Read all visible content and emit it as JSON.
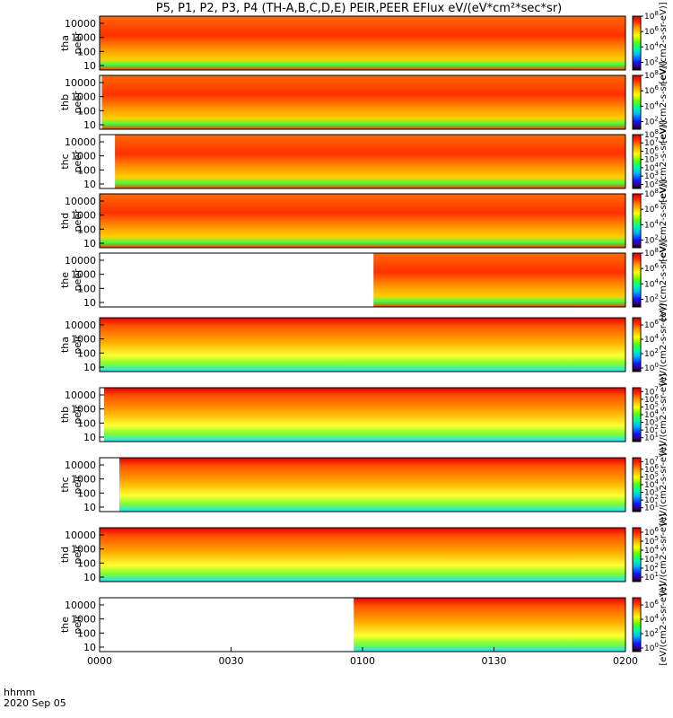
{
  "chart_data": {
    "type": "heatmap",
    "title": "P5, P1, P2, P3, P4 (TH-A,B,C,D,E) PEIR,PEER EFlux eV/(eV*cm²*sec*sr)",
    "x_axis": {
      "label": "hhmm",
      "date_label": "2020 Sep 05",
      "ticks": [
        "0000",
        "0030",
        "0100",
        "0130",
        "0200"
      ],
      "range_minutes": [
        0,
        120
      ]
    },
    "y_ticks": [
      "10",
      "100",
      "1000",
      "10000"
    ],
    "y_scale": "log",
    "colorbar_label": "[eV/(cm2-s-sr-eV)]",
    "panels": [
      {
        "probe": "tha",
        "species": "peer",
        "data_start_min": 0,
        "cbar": {
          "exp": [
            2,
            4,
            6,
            8
          ],
          "min": 1,
          "max": 8
        }
      },
      {
        "probe": "thb",
        "species": "peer",
        "data_start_min": 0.5,
        "cbar": {
          "exp": [
            2,
            4,
            6,
            8
          ],
          "min": 1,
          "max": 8
        }
      },
      {
        "probe": "thc",
        "species": "peer",
        "data_start_min": 3.5,
        "cbar": {
          "exp": [
            2,
            3,
            4,
            5,
            6,
            7,
            8
          ],
          "min": 1.5,
          "max": 8
        }
      },
      {
        "probe": "thd",
        "species": "peer",
        "data_start_min": 0,
        "cbar": {
          "exp": [
            2,
            4,
            6,
            8
          ],
          "min": 1,
          "max": 8
        }
      },
      {
        "probe": "the",
        "species": "peer",
        "data_start_min": 62.5,
        "cbar": {
          "exp": [
            2,
            4,
            6,
            8
          ],
          "min": 1,
          "max": 8
        }
      },
      {
        "probe": "tha",
        "species": "peir",
        "data_start_min": 0,
        "cbar": {
          "exp": [
            0,
            2,
            4,
            6
          ],
          "min": -0.5,
          "max": 7
        }
      },
      {
        "probe": "thb",
        "species": "peir",
        "data_start_min": 1,
        "cbar": {
          "exp": [
            1,
            2,
            3,
            4,
            5,
            6,
            7
          ],
          "min": 0.5,
          "max": 7.5
        }
      },
      {
        "probe": "thc",
        "species": "peir",
        "data_start_min": 4.5,
        "cbar": {
          "exp": [
            1,
            2,
            3,
            4,
            5,
            6,
            7
          ],
          "min": 0.5,
          "max": 7.5
        }
      },
      {
        "probe": "thd",
        "species": "peir",
        "data_start_min": 0,
        "cbar": {
          "exp": [
            1,
            2,
            3,
            4,
            5,
            6
          ],
          "min": 0.5,
          "max": 6.5
        }
      },
      {
        "probe": "the",
        "species": "peir",
        "data_start_min": 58,
        "cbar": {
          "exp": [
            0,
            2,
            4,
            6
          ],
          "min": -0.5,
          "max": 7
        }
      }
    ]
  }
}
